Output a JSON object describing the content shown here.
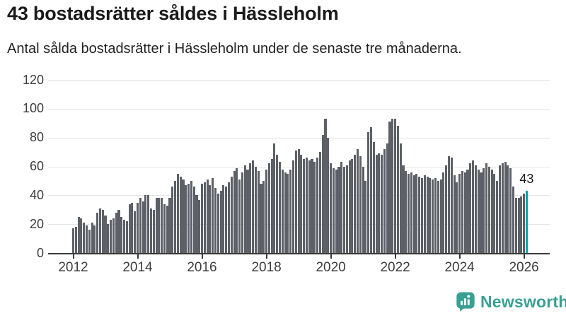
{
  "header": {
    "title": "43 bostadsrätter såldes i Hässleholm",
    "subtitle": "Antal sålda bostadsrätter i Hässleholm under de senaste tre månaderna."
  },
  "chart_data": {
    "type": "bar",
    "title": "43 bostadsrätter såldes i Hässleholm",
    "subtitle": "Antal sålda bostadsrätter i Hässleholm under de senaste tre månaderna.",
    "x_unit": "month",
    "x_start": "2012-01",
    "x_end": "2026-02",
    "x_tick_labels": [
      "2012",
      "2014",
      "2016",
      "2018",
      "2020",
      "2022",
      "2024",
      "2026"
    ],
    "y_ticks": [
      0,
      20,
      40,
      60,
      80,
      100,
      120
    ],
    "ylim": [
      0,
      120
    ],
    "grid": true,
    "legend": false,
    "bar_color": "#5e6067",
    "highlight_color": "#09a2a6",
    "annotation": {
      "text": "43",
      "value": 43,
      "series_index": 169
    },
    "values": [
      17,
      18,
      25,
      24,
      21,
      19,
      16,
      21,
      19,
      28,
      31,
      30,
      26,
      20,
      23,
      24,
      28,
      30,
      25,
      23,
      22,
      34,
      35,
      29,
      35,
      38,
      36,
      40,
      40,
      31,
      30,
      38,
      38,
      38,
      34,
      33,
      38,
      46,
      50,
      55,
      53,
      51,
      47,
      48,
      50,
      46,
      40,
      37,
      48,
      49,
      51,
      47,
      52,
      45,
      41,
      43,
      47,
      46,
      49,
      53,
      57,
      59,
      51,
      56,
      61,
      58,
      62,
      64,
      60,
      57,
      48,
      50,
      58,
      62,
      65,
      76,
      68,
      63,
      58,
      56,
      55,
      58,
      64,
      71,
      72,
      68,
      65,
      66,
      64,
      65,
      63,
      66,
      70,
      82,
      93,
      80,
      62,
      59,
      58,
      60,
      63,
      60,
      61,
      64,
      65,
      68,
      72,
      67,
      60,
      50,
      84,
      87,
      77,
      68,
      69,
      68,
      72,
      76,
      91,
      93,
      93,
      88,
      76,
      61,
      57,
      55,
      56,
      54,
      55,
      53,
      52,
      54,
      53,
      52,
      51,
      52,
      50,
      51,
      56,
      61,
      67,
      66,
      54,
      49,
      55,
      57,
      56,
      58,
      62,
      64,
      61,
      58,
      56,
      59,
      62,
      60,
      58,
      55,
      50,
      61,
      62,
      63,
      61,
      59,
      46,
      38,
      38,
      39,
      41,
      43
    ]
  },
  "footer": {
    "brand": "Newsworthy",
    "brand_color": "#38a093"
  }
}
